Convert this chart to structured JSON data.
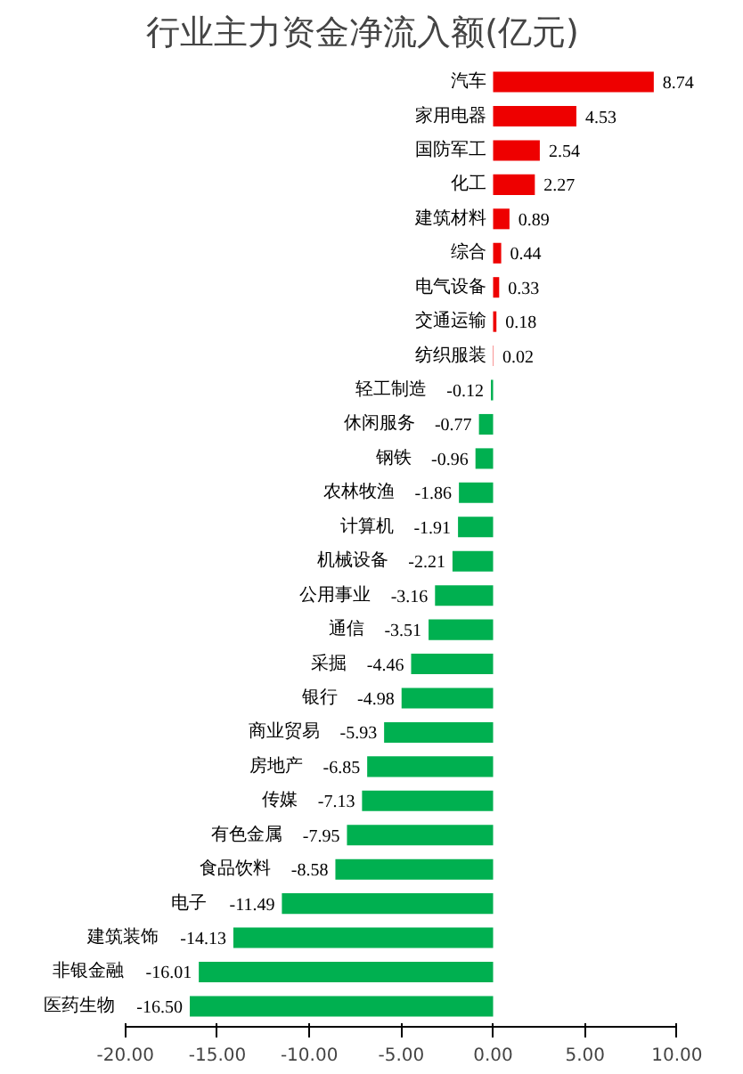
{
  "chart_data": {
    "type": "bar",
    "orientation": "horizontal",
    "title": "行业主力资金净流入额(亿元)",
    "categories": [
      "汽车",
      "家用电器",
      "国防军工",
      "化工",
      "建筑材料",
      "综合",
      "电气设备",
      "交通运输",
      "纺织服装",
      "轻工制造",
      "休闲服务",
      "钢铁",
      "农林牧渔",
      "计算机",
      "机械设备",
      "公用事业",
      "通信",
      "采掘",
      "银行",
      "商业贸易",
      "房地产",
      "传媒",
      "有色金属",
      "食品饮料",
      "电子",
      "建筑装饰",
      "非银金融",
      "医药生物"
    ],
    "values": [
      8.74,
      4.53,
      2.54,
      2.27,
      0.89,
      0.44,
      0.33,
      0.18,
      0.02,
      -0.12,
      -0.77,
      -0.96,
      -1.86,
      -1.91,
      -2.21,
      -3.16,
      -3.51,
      -4.46,
      -4.98,
      -5.93,
      -6.85,
      -7.13,
      -7.95,
      -8.58,
      -11.49,
      -14.13,
      -16.01,
      -16.5
    ],
    "value_labels": [
      "8.74",
      "4.53",
      "2.54",
      "2.27",
      "0.89",
      "0.44",
      "0.33",
      "0.18",
      "0.02",
      "-0.12",
      "-0.77",
      "-0.96",
      "-1.86",
      "-1.91",
      "-2.21",
      "-3.16",
      "-3.51",
      "-4.46",
      "-4.98",
      "-5.93",
      "-6.85",
      "-7.13",
      "-7.95",
      "-8.58",
      "-11.49",
      "-14.13",
      "-16.01",
      "-16.50"
    ],
    "colors": [
      "#ee0000",
      "#ee0000",
      "#ee0000",
      "#ee0000",
      "#ee0000",
      "#ee0000",
      "#ee0000",
      "#ee0000",
      "#ee0000",
      "#00b050",
      "#00b050",
      "#00b050",
      "#00b050",
      "#00b050",
      "#00b050",
      "#00b050",
      "#00b050",
      "#00b050",
      "#00b050",
      "#00b050",
      "#00b050",
      "#00b050",
      "#00b050",
      "#00b050",
      "#00b050",
      "#00b050",
      "#00b050",
      "#00b050"
    ],
    "xlim": [
      -20,
      10
    ],
    "xticks": [
      {
        "value": -20,
        "label": "-20.00"
      },
      {
        "value": -15,
        "label": "-15.00"
      },
      {
        "value": -10,
        "label": "-10.00"
      },
      {
        "value": -5,
        "label": "-5.00"
      },
      {
        "value": 0,
        "label": "0.00"
      },
      {
        "value": 5,
        "label": "5.00"
      },
      {
        "value": 10,
        "label": "10.00"
      }
    ],
    "grid": false
  }
}
